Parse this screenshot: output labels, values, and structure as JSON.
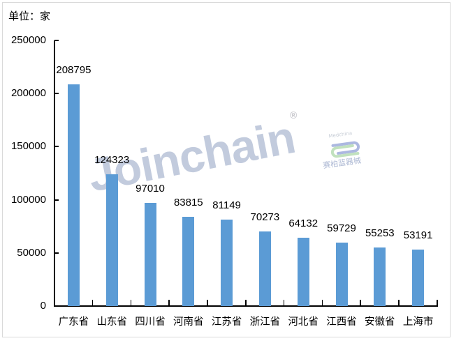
{
  "unit_label": "单位：家",
  "watermark": {
    "text": "Joinchain",
    "mark": "®",
    "secondary_caption": "Medchina",
    "secondary_text": "赛柏蓝器械"
  },
  "colors": {
    "bar": "#5b9bd5",
    "axis": "#000000",
    "frame": "#d9d9d9"
  },
  "y_ticks": [
    "250000",
    "200000",
    "150000",
    "100000",
    "50000",
    "0"
  ],
  "chart_data": {
    "type": "bar",
    "title": "",
    "unit": "单位：家",
    "xlabel": "",
    "ylabel": "",
    "ylim": [
      0,
      250000
    ],
    "yticks": [
      0,
      50000,
      100000,
      150000,
      200000,
      250000
    ],
    "grid": false,
    "legend": null,
    "categories": [
      "广东省",
      "山东省",
      "四川省",
      "河南省",
      "江苏省",
      "浙江省",
      "河北省",
      "江西省",
      "安徽省",
      "上海市"
    ],
    "values": [
      208795,
      124323,
      97010,
      83815,
      81149,
      70273,
      64132,
      59729,
      55253,
      53191
    ],
    "data_labels": [
      "208795",
      "124323",
      "97010",
      "83815",
      "81149",
      "70273",
      "64132",
      "59729",
      "55253",
      "53191"
    ]
  }
}
